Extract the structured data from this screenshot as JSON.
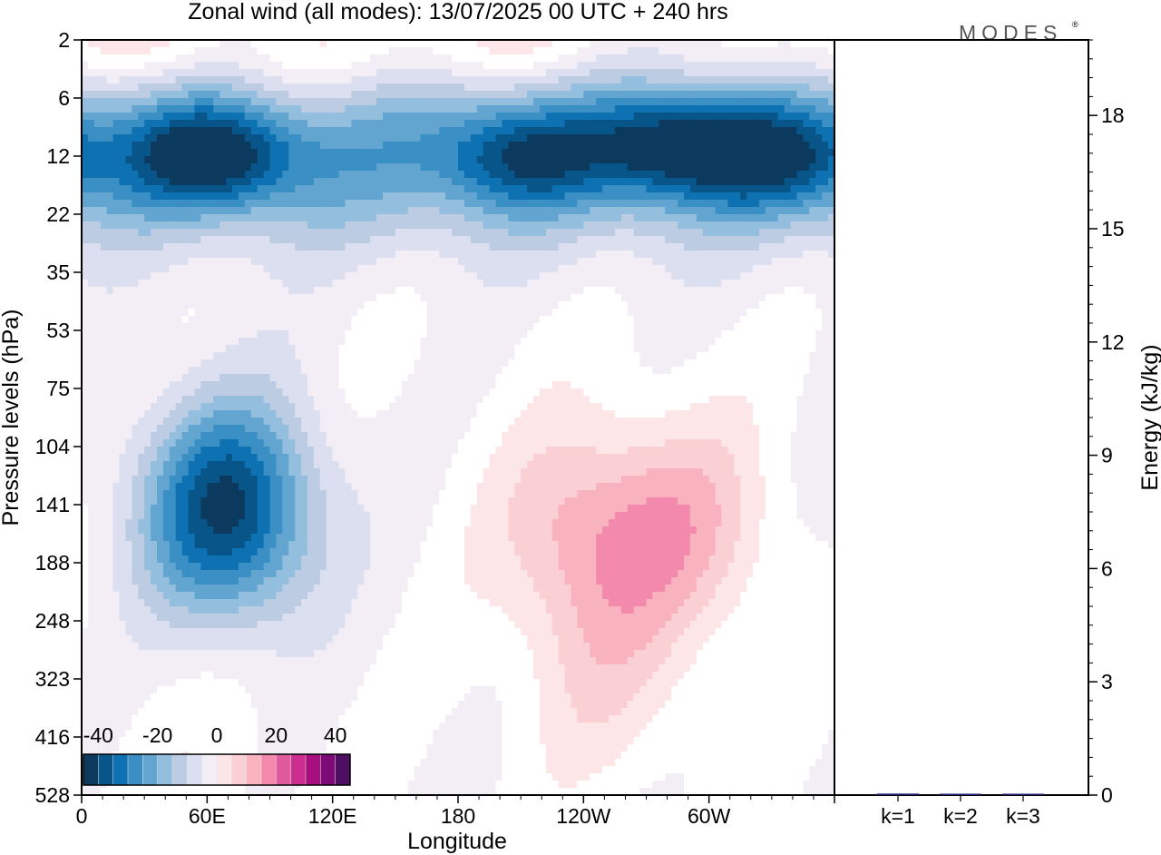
{
  "title": "Zonal wind (all modes):  13/07/2025  00 UTC  + 240 hrs",
  "logo": "MODES",
  "logo_mark": "®",
  "colors": {
    "ramp": [
      "#0b3a5e",
      "#08558a",
      "#0e72b2",
      "#3a8fc4",
      "#62a5d0",
      "#93bedd",
      "#bccce3",
      "#dcdff0",
      "#f3eef6",
      "#ffffff",
      "#fde6e8",
      "#fbd0d4",
      "#f9b3bf",
      "#f38aae",
      "#e05a9c",
      "#cc2e8f",
      "#a80f7e",
      "#7e0a77",
      "#4d0f61"
    ],
    "frame": "#000000",
    "bar": "#1f1f7a"
  },
  "chart_data": [
    {
      "type": "heatmap",
      "xlabel": "Longitude",
      "ylabel": "Pressure levels (hPa)",
      "x_ticks": [
        "0",
        "60E",
        "120E",
        "180",
        "120W",
        "60W"
      ],
      "x_tick_values": [
        0,
        60,
        120,
        180,
        240,
        300
      ],
      "xlim": [
        0,
        360
      ],
      "y_ticks": [
        "2",
        "6",
        "12",
        "22",
        "35",
        "53",
        "75",
        "104",
        "141",
        "188",
        "248",
        "323",
        "416",
        "528"
      ],
      "colorbar": {
        "tick_labels": [
          "-40",
          "-20",
          "0",
          "20",
          "40"
        ],
        "tick_values": [
          -40,
          -20,
          0,
          20,
          40
        ],
        "range": [
          -45,
          45
        ],
        "step": 5
      },
      "field": {
        "level_count": 14,
        "easterly_cores": [
          {
            "lon": 62,
            "level": 2.0,
            "value": -40
          },
          {
            "lon": 210,
            "level": 2.0,
            "value": -32
          },
          {
            "lon": 280,
            "level": 1.8,
            "value": -36
          },
          {
            "lon": 330,
            "level": 2.0,
            "value": -34
          },
          {
            "lon": 70,
            "level": 8.1,
            "value": -41
          }
        ],
        "westerly_cores": [
          {
            "lon": 110,
            "level": 0.4,
            "value": 6
          },
          {
            "lon": 240,
            "level": 8.5,
            "value": 16
          },
          {
            "lon": 290,
            "level": 8.4,
            "value": 14
          },
          {
            "lon": 250,
            "level": 11.0,
            "value": 8
          },
          {
            "lon": 60,
            "level": 12.3,
            "value": 3
          }
        ]
      }
    },
    {
      "type": "bar",
      "ylabel": "Energy (kJ/kg)",
      "categories": [
        "k=1",
        "k=2",
        "k=3"
      ],
      "values": [
        0.04,
        0.01,
        0.01
      ],
      "ylim": [
        0,
        20
      ],
      "y_ticks": [
        "0",
        "3",
        "6",
        "9",
        "12",
        "15",
        "18"
      ],
      "y_tick_values": [
        0,
        3,
        6,
        9,
        12,
        15,
        18
      ]
    }
  ]
}
